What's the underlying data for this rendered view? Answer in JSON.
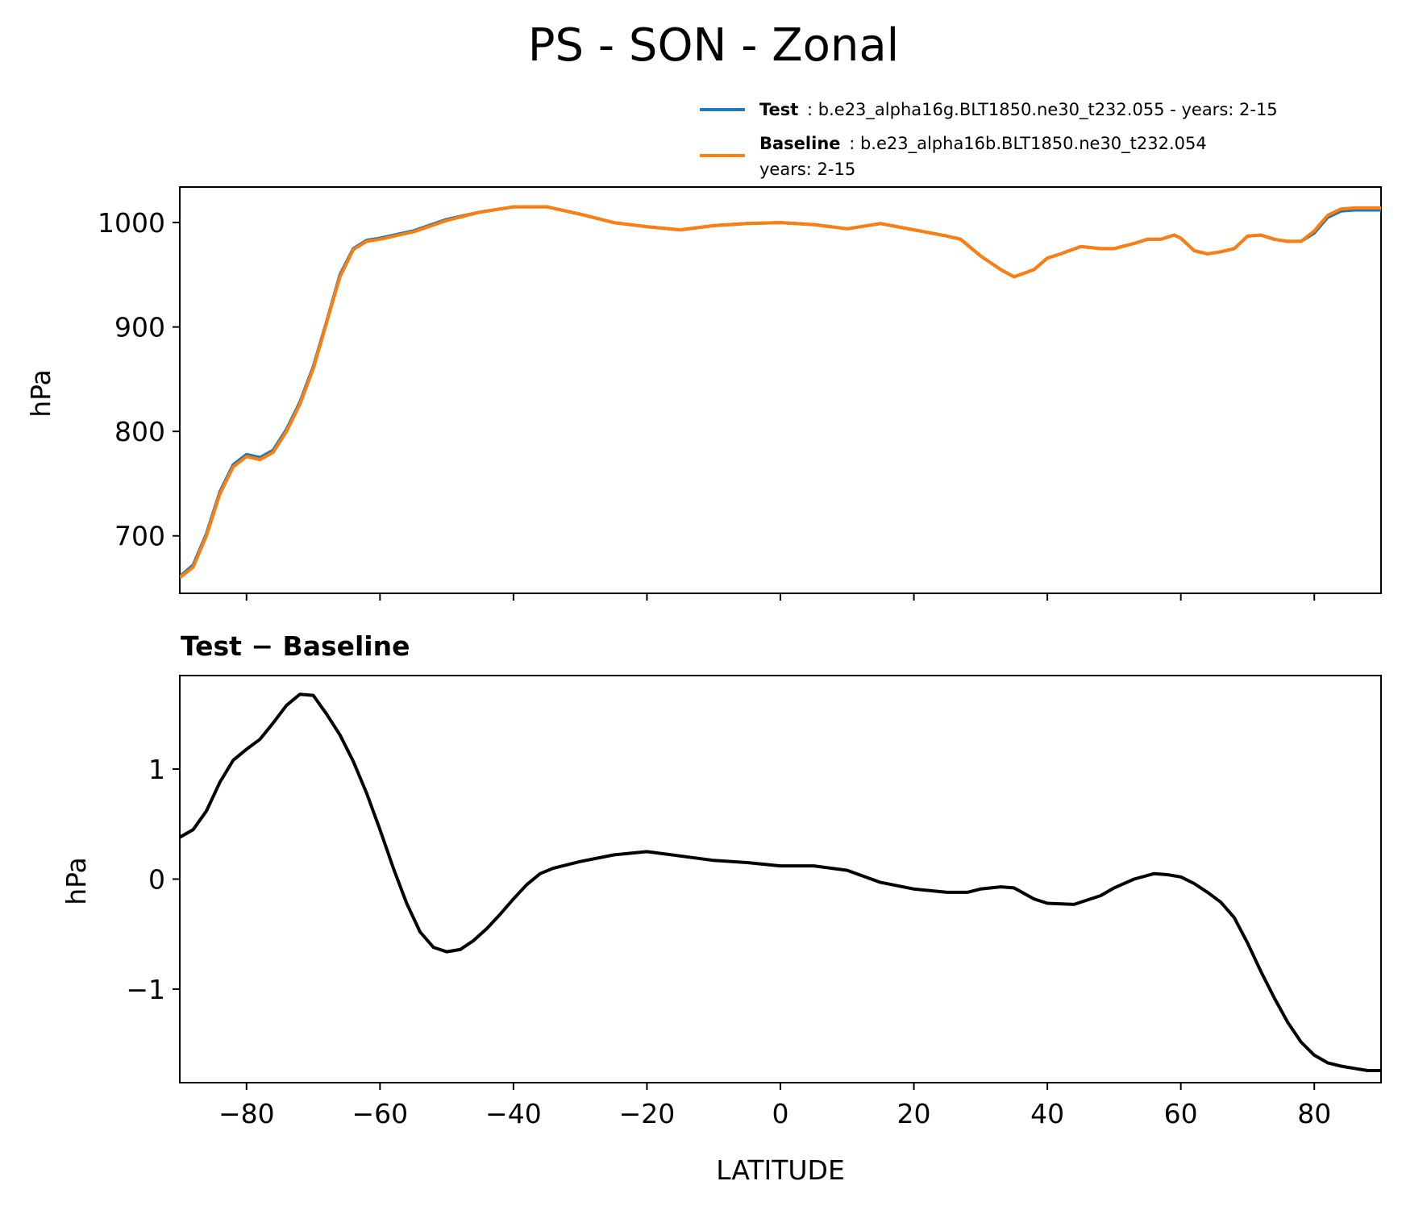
{
  "figure": {
    "title": "PS - SON - Zonal"
  },
  "legend": {
    "test": {
      "label": "Test",
      "text": ": b.e23_alpha16g.BLT1850.ne30_t232.055 - years: 2-15"
    },
    "baseline": {
      "label": "Baseline",
      "text1": ": b.e23_alpha16b.BLT1850.ne30_t232.054",
      "text2": "years: 2-15"
    }
  },
  "colors": {
    "test": "#1f77b4",
    "baseline": "#ff7f0e",
    "diff": "#000000"
  },
  "chart_data": [
    {
      "type": "line",
      "title": "",
      "xlabel": "",
      "ylabel": "hPa",
      "xlim": [
        -90,
        90
      ],
      "ylim": [
        645,
        1034
      ],
      "xticks": [
        -80,
        -60,
        -40,
        -20,
        0,
        20,
        40,
        60,
        80
      ],
      "xtick_labels_visible": false,
      "yticks": [
        700,
        800,
        900,
        1000
      ],
      "ytick_labels": [
        "700",
        "800",
        "900",
        "1000"
      ],
      "series": [
        {
          "name": "Test",
          "color": "#1f77b4",
          "x": [
            -90,
            -88,
            -86,
            -84,
            -82,
            -80,
            -78,
            -76,
            -74,
            -72,
            -70,
            -68,
            -66,
            -64,
            -62,
            -60,
            -55,
            -50,
            -45,
            -40,
            -35,
            -30,
            -25,
            -20,
            -15,
            -10,
            -5,
            0,
            5,
            10,
            15,
            20,
            25,
            27,
            30,
            33,
            35,
            38,
            40,
            42,
            45,
            48,
            50,
            53,
            55,
            57,
            59,
            60,
            62,
            64,
            66,
            68,
            70,
            72,
            74,
            76,
            78,
            80,
            82,
            84,
            86,
            88,
            90
          ],
          "values": [
            661,
            672,
            702,
            742,
            768,
            778,
            775,
            782,
            802,
            828,
            862,
            905,
            950,
            975,
            983,
            985,
            992,
            1003,
            1010,
            1015,
            1015,
            1008,
            1000,
            996,
            993,
            997,
            999,
            1000,
            998,
            994,
            999,
            993,
            987,
            984,
            968,
            955,
            948,
            955,
            966,
            970,
            977,
            975,
            975,
            980,
            984,
            984,
            988,
            985,
            973,
            970,
            972,
            975,
            987,
            988,
            984,
            982,
            982,
            990,
            1005,
            1011,
            1012,
            1012,
            1012
          ]
        },
        {
          "name": "Baseline",
          "color": "#ff7f0e",
          "x": [
            -90,
            -88,
            -86,
            -84,
            -82,
            -80,
            -78,
            -76,
            -74,
            -72,
            -70,
            -68,
            -66,
            -64,
            -62,
            -60,
            -55,
            -50,
            -45,
            -40,
            -35,
            -30,
            -25,
            -20,
            -15,
            -10,
            -5,
            0,
            5,
            10,
            15,
            20,
            25,
            27,
            30,
            33,
            35,
            38,
            40,
            42,
            45,
            48,
            50,
            53,
            55,
            57,
            59,
            60,
            62,
            64,
            66,
            68,
            70,
            72,
            74,
            76,
            78,
            80,
            82,
            84,
            86,
            88,
            90
          ],
          "values": [
            660,
            670,
            700,
            740,
            766,
            776,
            773,
            780,
            800,
            826,
            860,
            904,
            948,
            974,
            982,
            984,
            991,
            1002,
            1010,
            1015,
            1015,
            1008,
            1000,
            996,
            993,
            997,
            999,
            1000,
            998,
            994,
            999,
            993,
            987,
            984,
            968,
            955,
            948,
            955,
            966,
            970,
            977,
            975,
            975,
            980,
            984,
            984,
            988,
            985,
            973,
            970,
            972,
            975,
            987,
            988,
            984,
            982,
            982,
            992,
            1007,
            1013,
            1014,
            1014,
            1014
          ]
        }
      ]
    },
    {
      "type": "line",
      "title": "Test − Baseline",
      "xlabel": "LATITUDE",
      "ylabel": "hPa",
      "xlim": [
        -90,
        90
      ],
      "ylim": [
        -1.85,
        1.85
      ],
      "xticks": [
        -80,
        -60,
        -40,
        -20,
        0,
        20,
        40,
        60,
        80
      ],
      "xtick_labels": [
        "−80",
        "−60",
        "−40",
        "−20",
        "0",
        "20",
        "40",
        "60",
        "80"
      ],
      "yticks": [
        -1,
        0,
        1
      ],
      "ytick_labels": [
        "−1",
        "0",
        "1"
      ],
      "series": [
        {
          "name": "Test − Baseline",
          "color": "#000000",
          "x": [
            -90,
            -88,
            -86,
            -84,
            -82,
            -80,
            -78,
            -76,
            -74,
            -72,
            -70,
            -68,
            -66,
            -64,
            -62,
            -60,
            -58,
            -56,
            -54,
            -52,
            -50,
            -48,
            -46,
            -44,
            -42,
            -40,
            -38,
            -36,
            -34,
            -32,
            -30,
            -25,
            -20,
            -15,
            -10,
            -5,
            0,
            5,
            10,
            15,
            20,
            25,
            28,
            30,
            33,
            35,
            38,
            40,
            44,
            48,
            50,
            53,
            56,
            58,
            60,
            62,
            64,
            66,
            68,
            70,
            72,
            74,
            76,
            78,
            80,
            82,
            84,
            86,
            88,
            90
          ],
          "values": [
            0.38,
            0.45,
            0.62,
            0.88,
            1.08,
            1.18,
            1.27,
            1.42,
            1.58,
            1.68,
            1.67,
            1.5,
            1.31,
            1.07,
            0.78,
            0.45,
            0.1,
            -0.22,
            -0.48,
            -0.62,
            -0.66,
            -0.64,
            -0.56,
            -0.45,
            -0.32,
            -0.18,
            -0.05,
            0.05,
            0.1,
            0.13,
            0.16,
            0.22,
            0.25,
            0.21,
            0.17,
            0.15,
            0.12,
            0.12,
            0.08,
            -0.03,
            -0.09,
            -0.12,
            -0.12,
            -0.09,
            -0.07,
            -0.08,
            -0.18,
            -0.22,
            -0.23,
            -0.15,
            -0.08,
            0.0,
            0.05,
            0.04,
            0.02,
            -0.04,
            -0.12,
            -0.21,
            -0.35,
            -0.58,
            -0.84,
            -1.08,
            -1.3,
            -1.48,
            -1.6,
            -1.67,
            -1.7,
            -1.72,
            -1.74,
            -1.74
          ]
        }
      ]
    }
  ]
}
